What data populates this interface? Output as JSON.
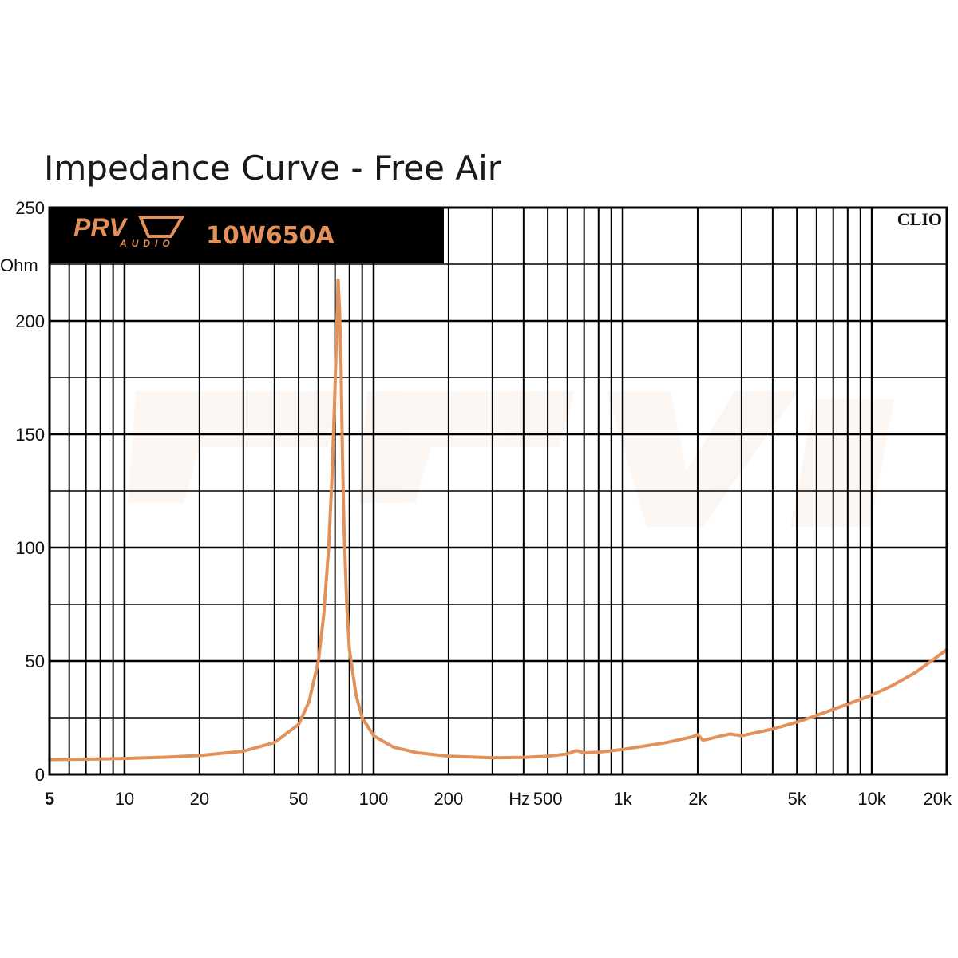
{
  "title": "Impedance Curve - Free Air",
  "header": {
    "brand": "PRV",
    "brand_sub": "AUDIO",
    "model": "10W650A",
    "software": "CLIO"
  },
  "colors": {
    "curve": "#e3915a",
    "brand": "#e3915a",
    "header_bg": "#000000",
    "grid": "#000000"
  },
  "chart_data": {
    "type": "line",
    "title": "Impedance Curve - Free Air",
    "xlabel": "Hz",
    "ylabel": "Ohm",
    "x_scale": "log",
    "xlim": [
      5,
      20000
    ],
    "ylim": [
      0,
      250
    ],
    "grid": true,
    "x_ticks": [
      {
        "value": 5,
        "label": "5"
      },
      {
        "value": 10,
        "label": "10"
      },
      {
        "value": 20,
        "label": "20"
      },
      {
        "value": 50,
        "label": "50"
      },
      {
        "value": 100,
        "label": "100"
      },
      {
        "value": 200,
        "label": "200"
      },
      {
        "value": 500,
        "label": "500"
      },
      {
        "value": 1000,
        "label": "1k"
      },
      {
        "value": 2000,
        "label": "2k"
      },
      {
        "value": 5000,
        "label": "5k"
      },
      {
        "value": 10000,
        "label": "10k"
      },
      {
        "value": 20000,
        "label": "20k"
      }
    ],
    "x_unit_label": "Hz",
    "y_ticks": [
      0,
      50,
      100,
      150,
      200,
      250
    ],
    "y_unit_label": "Ohm",
    "series": [
      {
        "x": [
          5,
          7,
          10,
          15,
          20,
          30,
          40,
          50,
          55,
          60,
          63,
          66,
          68,
          70,
          71,
          72,
          73,
          74,
          75,
          76,
          78,
          80,
          85,
          90,
          100,
          120,
          150,
          200,
          300,
          400,
          500,
          600,
          650,
          700,
          800,
          1000,
          1500,
          1900,
          2000,
          2100,
          2500,
          2700,
          3000,
          4000,
          5000,
          6000,
          8000,
          10000,
          12000,
          15000,
          20000
        ],
        "y": [
          6.5,
          6.7,
          7,
          7.6,
          8.3,
          10.2,
          14,
          22,
          32,
          50,
          70,
          100,
          130,
          170,
          195,
          218,
          205,
          180,
          140,
          110,
          75,
          55,
          35,
          25,
          17,
          12,
          9.5,
          8,
          7.3,
          7.5,
          8,
          9,
          10.5,
          9.5,
          9.8,
          11,
          14,
          16.5,
          17.5,
          15,
          17,
          17.8,
          17,
          20,
          23,
          26,
          31,
          35,
          39,
          45,
          55
        ]
      }
    ]
  }
}
